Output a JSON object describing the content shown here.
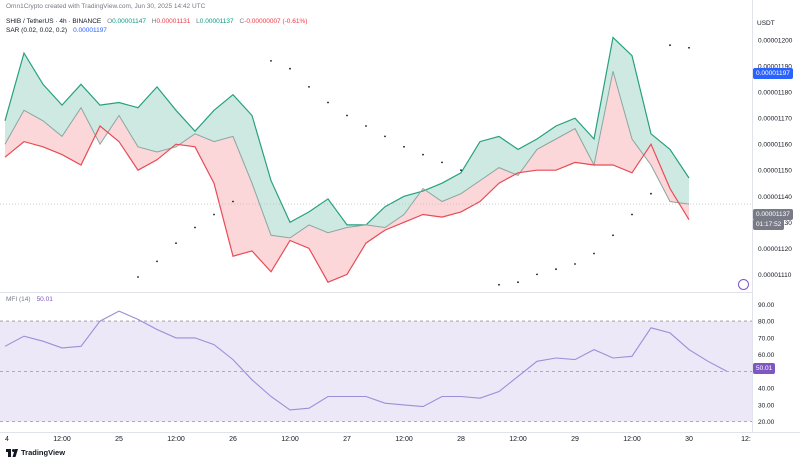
{
  "header": {
    "created": "Omn1Crypto created with TradingView.com, Jun 30, 2025 14:42 UTC",
    "symbol": "SHIB / TetherUS · 4h · BINANCE",
    "o_label": "O",
    "o_value": "0.00001147",
    "h_label": "H",
    "h_value": "0.00001131",
    "l_label": "L",
    "l_value": "0.00001137",
    "c_label": "C",
    "c_value": "-0.00000007 (-0.61%)",
    "sar_label": "SAR (0.02, 0.02, 0.2)",
    "sar_value": "0.00001197",
    "currency": "USDT",
    "mfi_label": "MFI (14)",
    "mfi_value": "50.01"
  },
  "logo": {
    "text": "TradingView"
  },
  "badges": {
    "sar_price": "0.00001197",
    "last_price": "0.00001137",
    "countdown": "01:17:52",
    "mfi": "50.01"
  },
  "colors": {
    "up": "#089981",
    "down": "#f23645",
    "sar": "#2962ff",
    "upper_line": "#26a17f",
    "lower_line": "#e84b55",
    "fill_green": "#cde9e2",
    "fill_red": "#fbd7d9",
    "mfi_line": "#9c8fd8",
    "mfi_fill": "#ece8f8",
    "last_price_bg": "#787b86"
  },
  "chart_data": [
    {
      "type": "area",
      "title": "SHIB / TetherUS · 4h · BINANCE",
      "ylim": [
        1.104e-05,
        1.21e-05
      ],
      "y_ticks": [
        "0.00001110",
        "0.00001120",
        "0.00001130",
        "0.00001140",
        "0.00001150",
        "0.00001160",
        "0.00001170",
        "0.00001180",
        "0.00001190",
        "0.00001200"
      ],
      "y_tick_values": [
        1.11e-05,
        1.12e-05,
        1.13e-05,
        1.14e-05,
        1.15e-05,
        1.16e-05,
        1.17e-05,
        1.18e-05,
        1.19e-05,
        1.2e-05
      ],
      "x_ticks": [
        "4",
        "12:00",
        "25",
        "12:00",
        "26",
        "12:00",
        "27",
        "12:00",
        "28",
        "12:00",
        "29",
        "12:00",
        "30",
        "12:"
      ],
      "x_tick_index": [
        0,
        3,
        6,
        9,
        12,
        15,
        18,
        21,
        24,
        27,
        30,
        33,
        36,
        39
      ],
      "series": [
        {
          "values": [
            1.169e-05,
            1.195e-05,
            1.183e-05,
            1.175e-05,
            1.183e-05,
            1.175e-05,
            1.176e-05,
            1.174e-05,
            1.182e-05,
            1.173e-05,
            1.165e-05,
            1.173e-05,
            1.179e-05,
            1.171e-05,
            1.146e-05,
            1.13e-05,
            1.134e-05,
            1.139e-05,
            1.129e-05,
            1.129e-05,
            1.136e-05,
            1.14e-05,
            1.142e-05,
            1.145e-05,
            1.149e-05,
            1.161e-05,
            1.163e-05,
            1.158e-05,
            1.162e-05,
            1.167e-05,
            1.17e-05,
            1.162e-05,
            1.201e-05,
            1.194e-05,
            1.164e-05,
            1.158e-05,
            1.147e-05
          ]
        },
        {
          "values": [
            1.16e-05,
            1.173e-05,
            1.169e-05,
            1.163e-05,
            1.174e-05,
            1.16e-05,
            1.171e-05,
            1.159e-05,
            1.157e-05,
            1.159e-05,
            1.164e-05,
            1.161e-05,
            1.163e-05,
            1.145e-05,
            1.125e-05,
            1.124e-05,
            1.129e-05,
            1.126e-05,
            1.128e-05,
            1.129e-05,
            1.128e-05,
            1.133e-05,
            1.143e-05,
            1.138e-05,
            1.141e-05,
            1.146e-05,
            1.151e-05,
            1.148e-05,
            1.158e-05,
            1.162e-05,
            1.166e-05,
            1.152e-05,
            1.188e-05,
            1.162e-05,
            1.152e-05,
            1.138e-05,
            1.137e-05
          ]
        },
        {
          "values": [
            1.155e-05,
            1.161e-05,
            1.159e-05,
            1.156e-05,
            1.152e-05,
            1.167e-05,
            1.161e-05,
            1.15e-05,
            1.154e-05,
            1.16e-05,
            1.159e-05,
            1.145e-05,
            1.117e-05,
            1.119e-05,
            1.111e-05,
            1.123e-05,
            1.12e-05,
            1.107e-05,
            1.11e-05,
            1.122e-05,
            1.127e-05,
            1.13e-05,
            1.133e-05,
            1.132e-05,
            1.134e-05,
            1.138e-05,
            1.145e-05,
            1.149e-05,
            1.15e-05,
            1.15e-05,
            1.153e-05,
            1.152e-05,
            1.152e-05,
            1.149e-05,
            1.16e-05,
            1.143e-05,
            1.131e-05
          ]
        },
        {
          "name": "SAR (0.02, 0.02, 0.2)",
          "x_index": [
            7,
            8,
            9,
            10,
            11,
            12,
            14,
            15,
            16,
            17,
            18,
            19,
            20,
            21,
            22,
            23,
            24,
            26,
            27,
            28,
            29,
            30,
            31,
            32,
            33,
            34,
            35,
            36
          ],
          "values": [
            1.109e-05,
            1.115e-05,
            1.122e-05,
            1.128e-05,
            1.133e-05,
            1.138e-05,
            1.192e-05,
            1.189e-05,
            1.182e-05,
            1.176e-05,
            1.171e-05,
            1.167e-05,
            1.163e-05,
            1.159e-05,
            1.156e-05,
            1.153e-05,
            1.15e-05,
            1.106e-05,
            1.107e-05,
            1.11e-05,
            1.112e-05,
            1.114e-05,
            1.118e-05,
            1.125e-05,
            1.133e-05,
            1.141e-05,
            1.198e-05,
            1.197e-05
          ]
        }
      ]
    },
    {
      "type": "area",
      "title": "MFI (14)",
      "ylim": [
        15,
        95
      ],
      "y_ticks": [
        "20.00",
        "30.00",
        "40.00",
        "50.00",
        "60.00",
        "70.00",
        "80.00",
        "90.00"
      ],
      "y_tick_values": [
        20,
        30,
        40,
        50,
        60,
        70,
        80,
        90
      ],
      "bands": [
        80,
        50,
        20
      ],
      "series": [
        {
          "name": "MFI (14)",
          "values": [
            65,
            71,
            68,
            64,
            65,
            80,
            86,
            81,
            75,
            70,
            70,
            66,
            57,
            45,
            35,
            27,
            28,
            35,
            35,
            35,
            31,
            30,
            29,
            35,
            35,
            34,
            38,
            47,
            56,
            58,
            57,
            63,
            58,
            59,
            76,
            73,
            63,
            56,
            50
          ]
        }
      ]
    }
  ]
}
